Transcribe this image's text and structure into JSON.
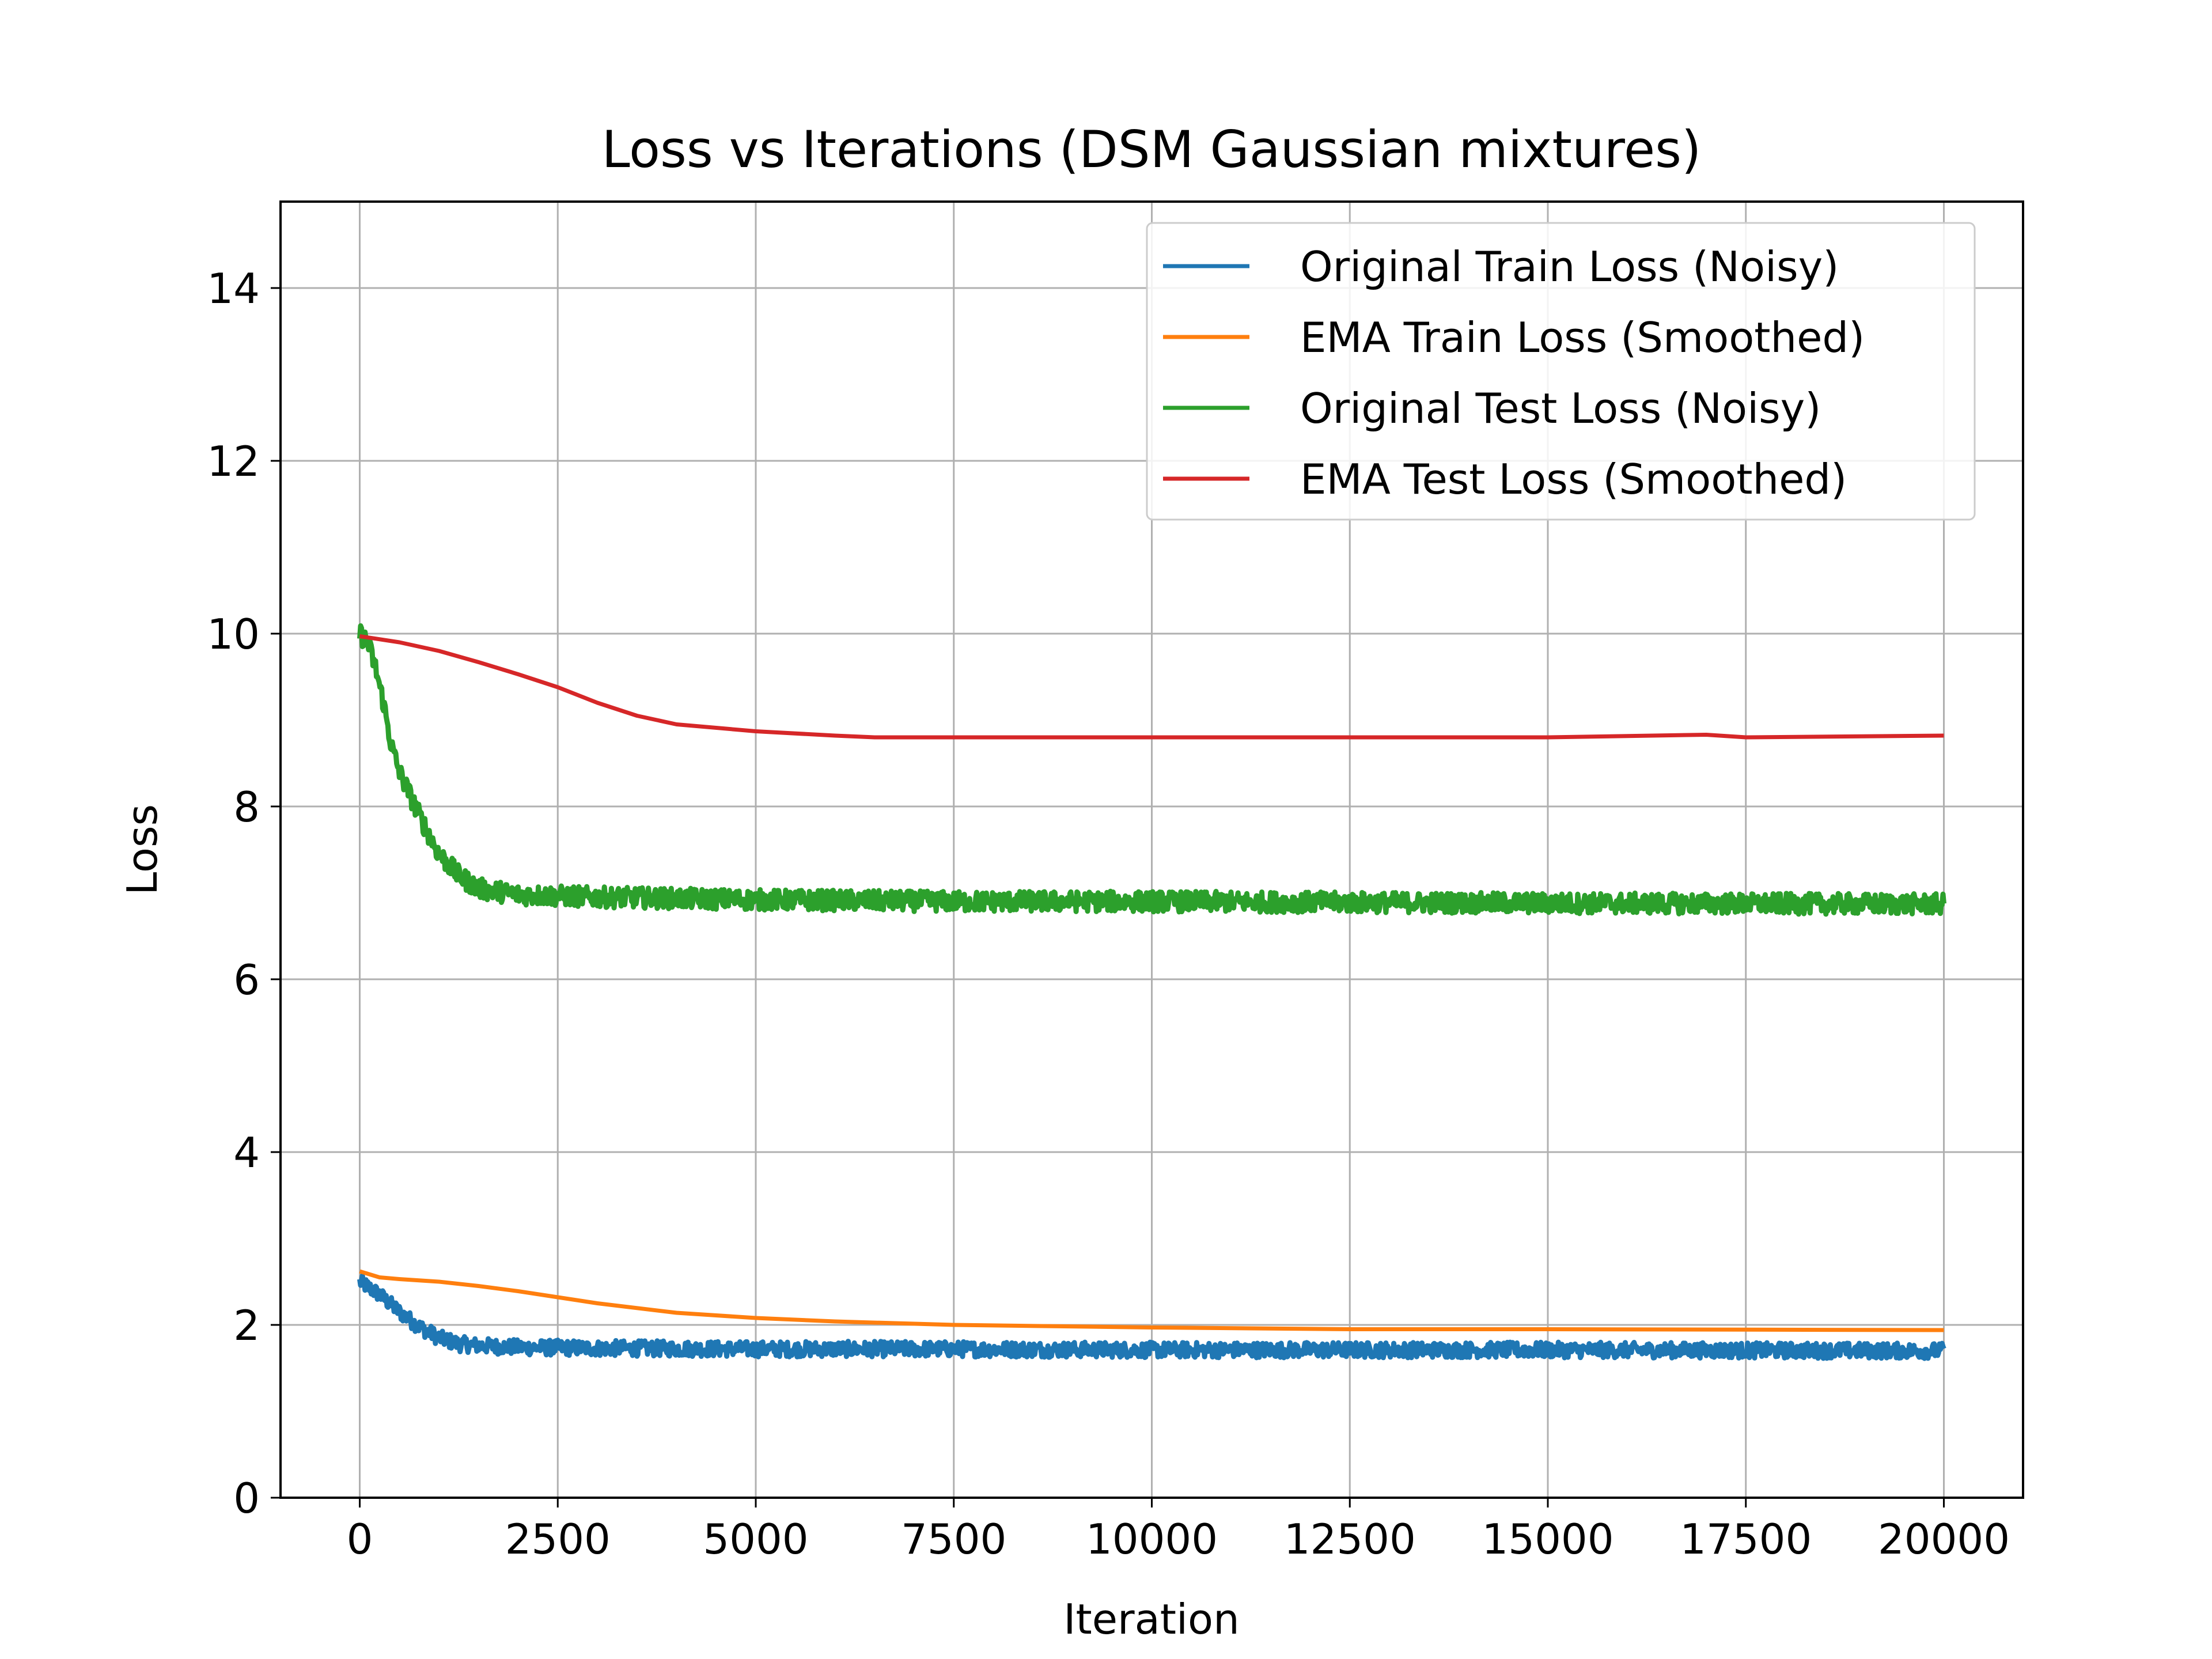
{
  "chart_data": {
    "type": "line",
    "title": "Loss vs Iterations (DSM Gaussian mixtures)",
    "xlabel": "Iteration",
    "ylabel": "Loss",
    "xlim": [
      -1000,
      21000
    ],
    "ylim": [
      0,
      15
    ],
    "xticks": [
      0,
      2500,
      5000,
      7500,
      10000,
      12500,
      15000,
      17500,
      20000
    ],
    "xtick_labels": [
      "0",
      "2500",
      "5000",
      "7500",
      "10000",
      "12500",
      "15000",
      "17500",
      "20000"
    ],
    "yticks": [
      0,
      2,
      4,
      6,
      8,
      10,
      12,
      14
    ],
    "ytick_labels": [
      "0",
      "2",
      "4",
      "6",
      "8",
      "10",
      "12",
      "14"
    ],
    "grid": true,
    "legend_position": "top-right",
    "series": [
      {
        "name": "Original Train Loss (Noisy)",
        "color": "#1f77b4",
        "noisy": true,
        "noise_amplitude": 0.09,
        "x": [
          0,
          250,
          500,
          750,
          1000,
          1250,
          1500,
          2000,
          3000,
          5000,
          7500,
          10000,
          15000,
          20000
        ],
        "y": [
          2.5,
          2.35,
          2.15,
          1.98,
          1.85,
          1.78,
          1.76,
          1.74,
          1.73,
          1.72,
          1.72,
          1.71,
          1.71,
          1.7
        ]
      },
      {
        "name": "EMA Train Loss (Smoothed)",
        "color": "#ff7f0e",
        "noisy": false,
        "x": [
          0,
          250,
          500,
          1000,
          1500,
          2000,
          2500,
          3000,
          4000,
          5000,
          6000,
          7500,
          10000,
          12500,
          15000,
          20000
        ],
        "y": [
          2.62,
          2.55,
          2.53,
          2.5,
          2.45,
          2.39,
          2.32,
          2.25,
          2.14,
          2.08,
          2.04,
          2.0,
          1.97,
          1.95,
          1.95,
          1.94
        ]
      },
      {
        "name": "Original Test Loss (Noisy)",
        "color": "#2ca02c",
        "noisy": true,
        "noise_amplitude": 0.12,
        "x": [
          0,
          100,
          200,
          300,
          400,
          500,
          750,
          1000,
          1250,
          1500,
          2000,
          3000,
          5000,
          7500,
          10000,
          15000,
          20000
        ],
        "y": [
          10.0,
          9.9,
          9.6,
          9.2,
          8.7,
          8.4,
          7.9,
          7.45,
          7.2,
          7.05,
          6.98,
          6.95,
          6.92,
          6.9,
          6.9,
          6.88,
          6.87
        ]
      },
      {
        "name": "EMA Test Loss (Smoothed)",
        "color": "#d62728",
        "noisy": false,
        "x": [
          0,
          500,
          1000,
          1500,
          2000,
          2500,
          3000,
          3500,
          4000,
          5000,
          6000,
          6500,
          7500,
          10000,
          12500,
          15000,
          17000,
          17500,
          20000
        ],
        "y": [
          9.97,
          9.9,
          9.8,
          9.67,
          9.53,
          9.38,
          9.2,
          9.05,
          8.95,
          8.87,
          8.82,
          8.8,
          8.8,
          8.8,
          8.8,
          8.8,
          8.83,
          8.8,
          8.82
        ]
      }
    ]
  }
}
